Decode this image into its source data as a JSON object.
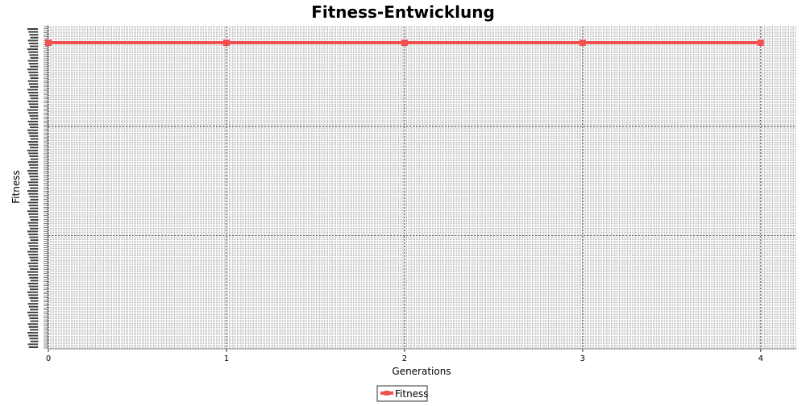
{
  "chart_data": {
    "type": "line",
    "title": "Fitness-Entwicklung",
    "xlabel": "Generations",
    "ylabel": "Fitness",
    "x": [
      0,
      1,
      2,
      3,
      4
    ],
    "x_ticks": [
      "0",
      "1",
      "2",
      "3",
      "4"
    ],
    "xlim": [
      0,
      4.2
    ],
    "series": [
      {
        "name": "Fitness",
        "values": [
          0.95,
          0.95,
          0.95,
          0.95,
          0.95
        ],
        "color": "#f05050"
      }
    ],
    "ylim": [
      0,
      1
    ],
    "y_tick_labels_illegible": true,
    "grid": true,
    "legend_position": "bottom-center",
    "colors": {
      "background": "#ffffff",
      "plot_background": "#ffffff",
      "gridline": "#444444",
      "axis": "#888888",
      "series": "#f05050"
    }
  }
}
